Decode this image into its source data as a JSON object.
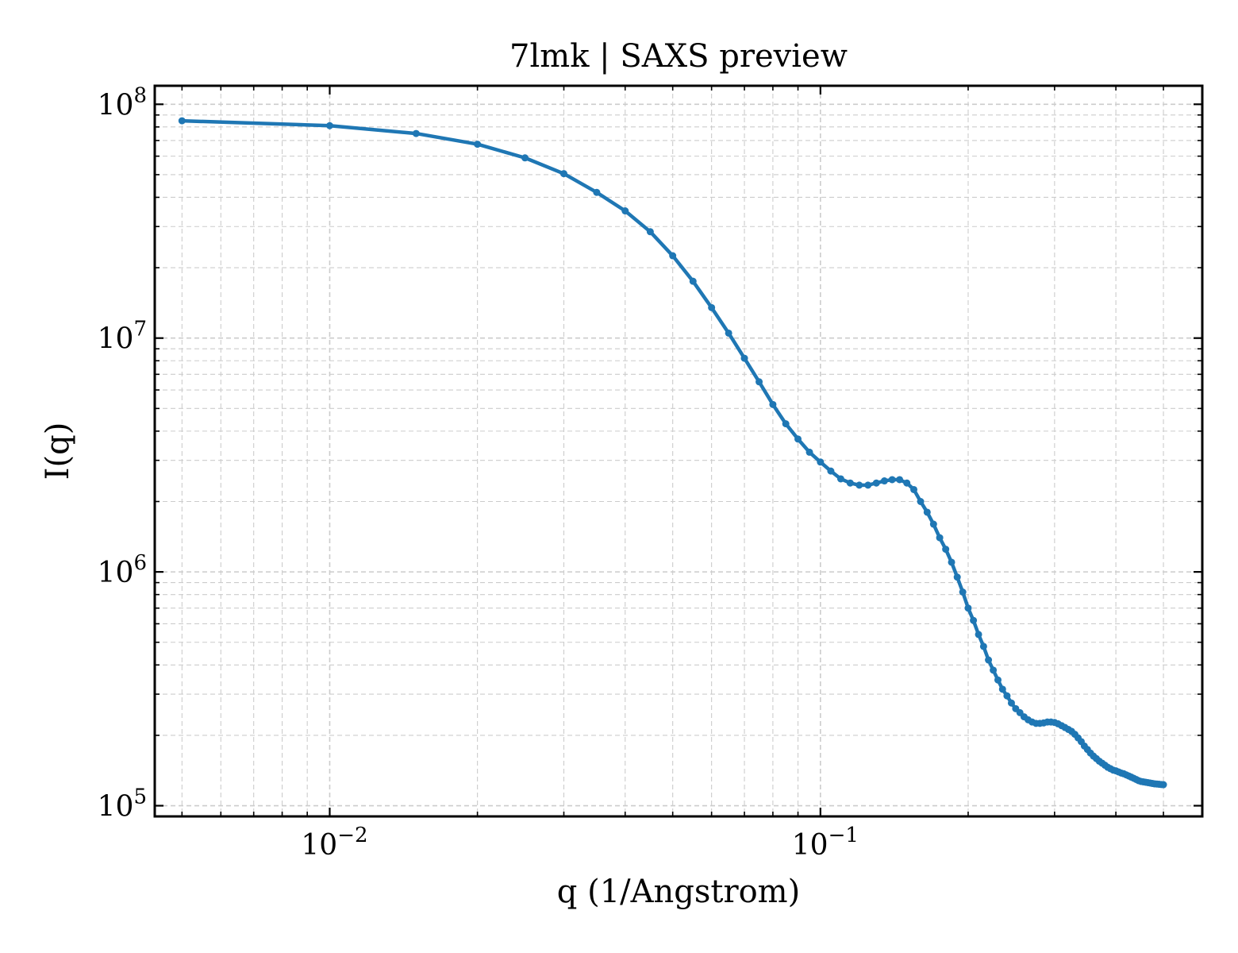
{
  "chart_data": {
    "type": "line",
    "title": "7lmk | SAXS preview",
    "xlabel": "q (1/Angstrom)",
    "ylabel": "I(q)",
    "xscale": "log",
    "yscale": "log",
    "xlim": [
      0.0044,
      0.6
    ],
    "ylim": [
      90000,
      120000000
    ],
    "grid": true,
    "legend": "none",
    "x_ticks": [
      {
        "value": 0.01,
        "base": "10",
        "exp": "−2"
      },
      {
        "value": 0.1,
        "base": "10",
        "exp": "−1"
      }
    ],
    "y_ticks": [
      {
        "value": 100000,
        "base": "10",
        "exp": "5"
      },
      {
        "value": 1000000,
        "base": "10",
        "exp": "6"
      },
      {
        "value": 10000000,
        "base": "10",
        "exp": "7"
      },
      {
        "value": 100000000,
        "base": "10",
        "exp": "8"
      }
    ],
    "colors": {
      "series": "#1f77b4",
      "grid": "#cccccc",
      "axis": "#000000"
    },
    "series": [
      {
        "x": [
          0.005,
          0.01,
          0.015,
          0.02,
          0.025,
          0.03,
          0.035,
          0.04,
          0.045,
          0.05,
          0.055,
          0.06,
          0.065,
          0.07,
          0.075,
          0.08,
          0.085,
          0.09,
          0.095,
          0.1,
          0.105,
          0.11,
          0.115,
          0.12,
          0.125,
          0.13,
          0.135,
          0.14,
          0.145,
          0.15,
          0.155,
          0.16,
          0.165,
          0.17,
          0.175,
          0.18,
          0.185,
          0.19,
          0.195,
          0.2,
          0.205,
          0.21,
          0.215,
          0.22,
          0.225,
          0.23,
          0.235,
          0.24,
          0.245,
          0.25,
          0.255,
          0.26,
          0.265,
          0.27,
          0.275,
          0.28,
          0.285,
          0.29,
          0.295,
          0.3,
          0.305,
          0.31,
          0.315,
          0.32,
          0.325,
          0.33,
          0.335,
          0.34,
          0.345,
          0.35,
          0.355,
          0.36,
          0.365,
          0.37,
          0.375,
          0.38,
          0.385,
          0.39,
          0.395,
          0.4,
          0.405,
          0.41,
          0.415,
          0.42,
          0.425,
          0.43,
          0.435,
          0.44,
          0.445,
          0.45,
          0.455,
          0.46,
          0.465,
          0.47,
          0.475,
          0.48,
          0.485,
          0.49,
          0.495,
          0.5
        ],
        "y": [
          85000000,
          81000000,
          75000000,
          67500000,
          59000000,
          50500000,
          42000000,
          35000000,
          28500000,
          22500000,
          17500000,
          13500000,
          10500000,
          8200000,
          6500000,
          5200000,
          4300000,
          3700000,
          3250000,
          2950000,
          2700000,
          2500000,
          2400000,
          2350000,
          2350000,
          2400000,
          2450000,
          2480000,
          2480000,
          2400000,
          2250000,
          2000000,
          1800000,
          1600000,
          1400000,
          1250000,
          1100000,
          950000,
          820000,
          700000,
          620000,
          540000,
          480000,
          420000,
          380000,
          345000,
          315000,
          295000,
          275000,
          260000,
          250000,
          240000,
          233000,
          228000,
          225000,
          225000,
          226000,
          228000,
          228000,
          227000,
          224000,
          220000,
          216000,
          212000,
          208000,
          202000,
          195000,
          188000,
          180000,
          174000,
          168000,
          163000,
          159000,
          155000,
          152000,
          149000,
          146000,
          144000,
          142000,
          141000,
          139500,
          138000,
          137000,
          135500,
          134000,
          132500,
          131000,
          129500,
          128000,
          127000,
          126500,
          126000,
          125500,
          125000,
          124500,
          124000,
          123800,
          123500,
          123200,
          123000
        ]
      }
    ]
  }
}
